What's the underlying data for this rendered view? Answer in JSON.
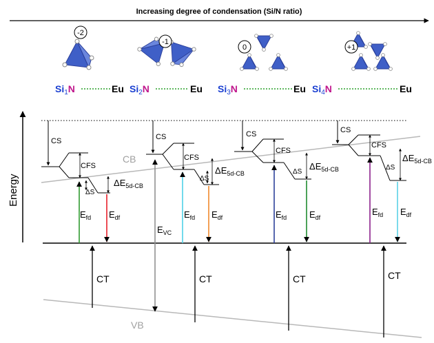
{
  "header": {
    "title": "Increasing degree of condensation (Si/N ratio)"
  },
  "structures": [
    {
      "charge": "-2",
      "prefix": "Si",
      "sub": "1",
      "n": "N",
      "eu": "Eu"
    },
    {
      "charge": "-1",
      "prefix": "Si",
      "sub": "2",
      "n": "N",
      "eu": "Eu"
    },
    {
      "charge": "0",
      "prefix": "Si",
      "sub": "3",
      "n": "N",
      "eu": "Eu"
    },
    {
      "charge": "+1",
      "prefix": "Si",
      "sub": "4",
      "n": "N",
      "eu": "Eu"
    }
  ],
  "axis": {
    "energy": "Energy"
  },
  "bands": {
    "cb": "CB",
    "vb": "VB"
  },
  "labels": {
    "cs": "CS",
    "cfs": "CFS",
    "ds": "ΔS",
    "delta": "Δ",
    "e": "E",
    "e5d": "5d-CB",
    "efd_sub": "fd",
    "edf_sub": "df",
    "evc_sub": "VC",
    "ct": "CT"
  },
  "colors": {
    "si": "#1a3fd1",
    "n": "#c0168c",
    "eu_dots": "#2aa02a",
    "tetra": "#3f5fc7",
    "efd": [
      "#2e9a2e",
      "#4fd0e8",
      "#2b3f9a",
      "#8a1f8a"
    ],
    "edf": [
      "#e8202a",
      "#f0892a",
      "#1f8a2e",
      "#5ad0e6"
    ],
    "evc": "#909090",
    "band": "#b8b8b8"
  }
}
